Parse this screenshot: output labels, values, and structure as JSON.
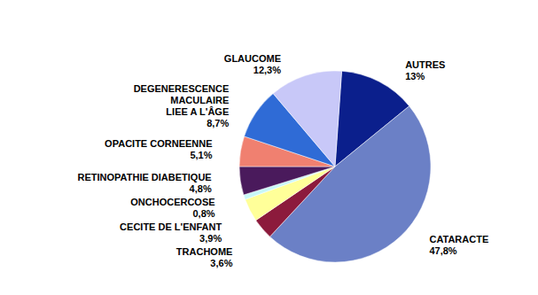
{
  "chart_data": {
    "type": "pie",
    "categories": [
      "AUTRES",
      "CATARACTE",
      "TRACHOME",
      "CECITE DE L'ENFANT",
      "ONCHOCERCOSE",
      "RETINOPATHIE DIABETIQUE",
      "OPACITE CORNEENNE",
      "DEGENERESCENCE\nMACULAIRE\nLIEE A L'ÂGE",
      "GLAUCOME"
    ],
    "values": [
      13,
      47.8,
      3.6,
      3.9,
      0.8,
      4.8,
      5.1,
      8.7,
      12.3
    ],
    "value_labels": [
      "13%",
      "47,8%",
      "3,6%",
      "3,9%",
      "0,8%",
      "4,8%",
      "5,1%",
      "8,7%",
      "12,3%"
    ],
    "colors": [
      "#0b1f8c",
      "#6b80c6",
      "#8c1a3c",
      "#ffff99",
      "#c8f8f8",
      "#4a1a5c",
      "#f08070",
      "#2f6bd6",
      "#c8c8f8"
    ],
    "data_labels": true
  }
}
